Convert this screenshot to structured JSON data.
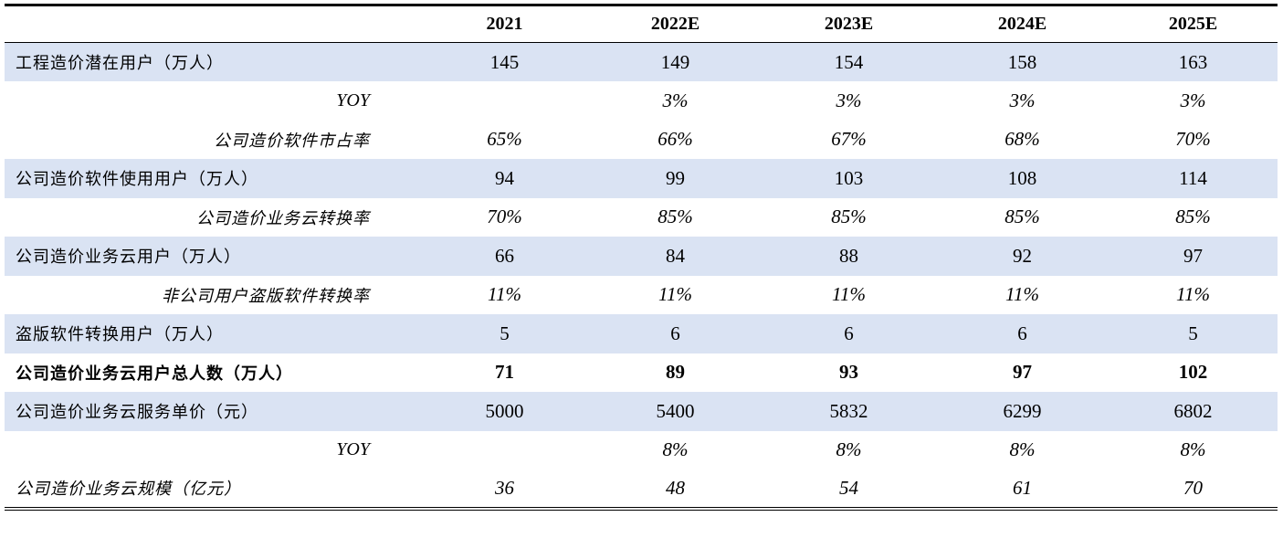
{
  "header": {
    "label": "",
    "years": [
      "2021",
      "2022E",
      "2023E",
      "2024E",
      "2025E"
    ]
  },
  "rows": [
    {
      "label": "工程造价潜在用户（万人）",
      "values": [
        "145",
        "149",
        "154",
        "158",
        "163"
      ]
    },
    {
      "label": "YOY",
      "values": [
        "",
        "3%",
        "3%",
        "3%",
        "3%"
      ]
    },
    {
      "label": "公司造价软件市占率",
      "values": [
        "65%",
        "66%",
        "67%",
        "68%",
        "70%"
      ]
    },
    {
      "label": "公司造价软件使用用户（万人）",
      "values": [
        "94",
        "99",
        "103",
        "108",
        "114"
      ]
    },
    {
      "label": "公司造价业务云转换率",
      "values": [
        "70%",
        "85%",
        "85%",
        "85%",
        "85%"
      ]
    },
    {
      "label": "公司造价业务云用户（万人）",
      "values": [
        "66",
        "84",
        "88",
        "92",
        "97"
      ]
    },
    {
      "label": "非公司用户盗版软件转换率",
      "values": [
        "11%",
        "11%",
        "11%",
        "11%",
        "11%"
      ]
    },
    {
      "label": "盗版软件转换用户（万人）",
      "values": [
        "5",
        "6",
        "6",
        "6",
        "5"
      ]
    },
    {
      "label": "公司造价业务云用户总人数（万人）",
      "values": [
        "71",
        "89",
        "93",
        "97",
        "102"
      ]
    },
    {
      "label": "公司造价业务云服务单价（元）",
      "values": [
        "5000",
        "5400",
        "5832",
        "6299",
        "6802"
      ]
    },
    {
      "label": "YOY",
      "values": [
        "",
        "8%",
        "8%",
        "8%",
        "8%"
      ]
    },
    {
      "label": "公司造价业务云规模（亿元）",
      "values": [
        "36",
        "48",
        "54",
        "61",
        "70"
      ]
    }
  ]
}
